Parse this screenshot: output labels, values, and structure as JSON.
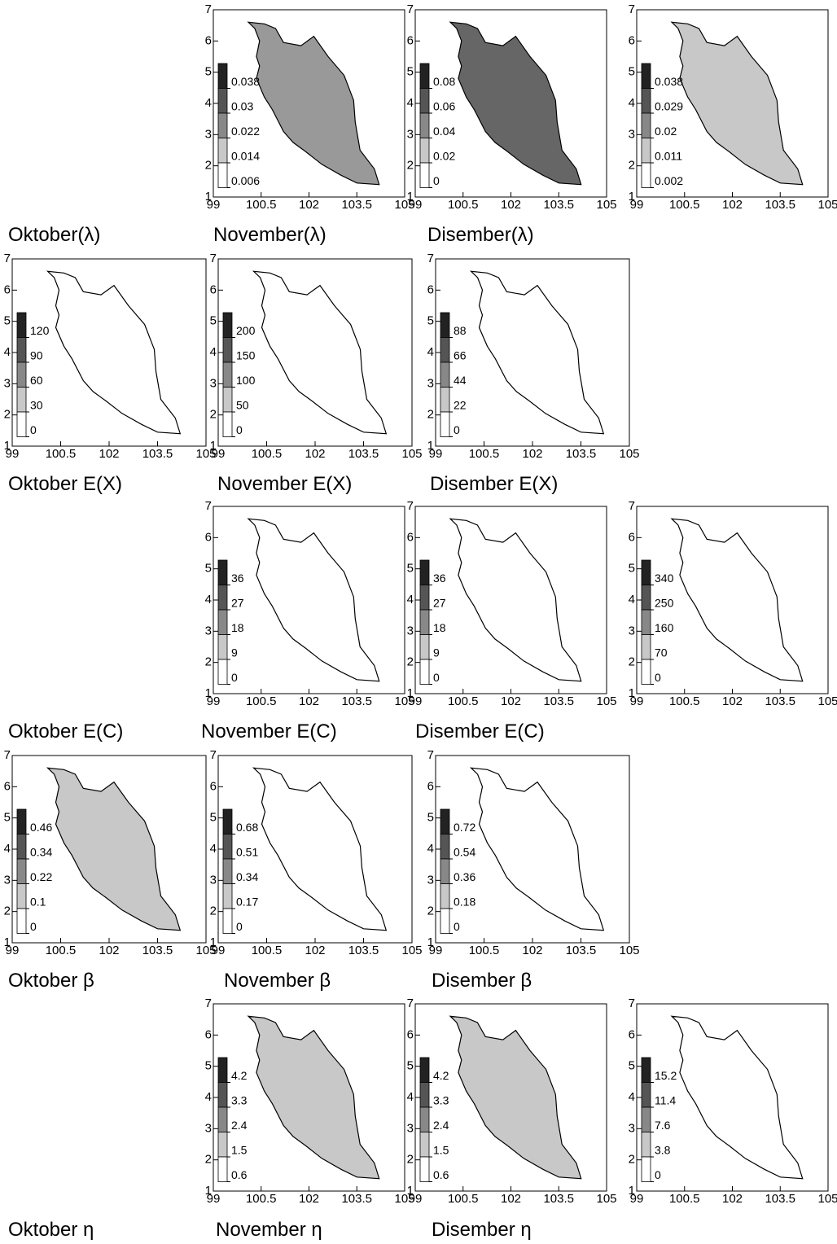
{
  "xticks": [
    99,
    100.5,
    102,
    103.5,
    105
  ],
  "yticks": [
    1,
    2,
    3,
    4,
    5,
    6,
    7
  ],
  "rows": [
    {
      "captions": [
        "Oktober(λ)",
        "November(λ)",
        "Disember(λ)"
      ],
      "panels": [
        {
          "fill": "#999999",
          "legend": [
            0.038,
            0.03,
            0.022,
            0.014,
            0.006
          ]
        },
        {
          "fill": "#666666",
          "legend": [
            0.08,
            0.06,
            0.04,
            0.02,
            0
          ]
        },
        {
          "fill": "#c8c8c8",
          "legend": [
            0.038,
            0.029,
            0.02,
            0.011,
            0.002
          ]
        }
      ]
    },
    {
      "captions": [
        "Oktober E(X)",
        "November E(X)",
        "Disember E(X)"
      ],
      "panels": [
        {
          "fill": "#ffffff",
          "legend": [
            120,
            90,
            60,
            30,
            0
          ]
        },
        {
          "fill": "#ffffff",
          "legend": [
            200,
            150,
            100,
            50,
            0
          ]
        },
        {
          "fill": "#ffffff",
          "legend": [
            88,
            66,
            44,
            22,
            0
          ]
        }
      ]
    },
    {
      "captions": [
        "Oktober E(C)",
        "November E(C)",
        "Disember E(C)"
      ],
      "panels": [
        {
          "fill": "#ffffff",
          "legend": [
            36,
            27,
            18,
            9,
            0
          ]
        },
        {
          "fill": "#ffffff",
          "legend": [
            36,
            27,
            18,
            9,
            0
          ]
        },
        {
          "fill": "#ffffff",
          "legend": [
            340,
            250,
            160,
            70,
            0
          ]
        }
      ]
    },
    {
      "captions": [
        "Oktober β",
        "November β",
        "Disember β"
      ],
      "panels": [
        {
          "fill": "#c8c8c8",
          "legend": [
            0.46,
            0.34,
            0.22,
            0.1,
            0
          ]
        },
        {
          "fill": "#ffffff",
          "legend": [
            0.68,
            0.51,
            0.34,
            0.17,
            0
          ]
        },
        {
          "fill": "#ffffff",
          "legend": [
            0.72,
            0.54,
            0.36,
            0.18,
            0
          ]
        }
      ]
    },
    {
      "captions": [
        "Oktober η",
        "November η",
        "Disember η"
      ],
      "panels": [
        {
          "fill": "#c8c8c8",
          "legend": [
            4.2,
            3.3,
            2.4,
            1.5,
            0.6
          ]
        },
        {
          "fill": "#c8c8c8",
          "legend": [
            4.2,
            3.3,
            2.4,
            1.5,
            0.6
          ]
        },
        {
          "fill": "#ffffff",
          "legend": [
            15.2,
            11.4,
            7.6,
            3.8,
            0
          ]
        }
      ]
    }
  ]
}
